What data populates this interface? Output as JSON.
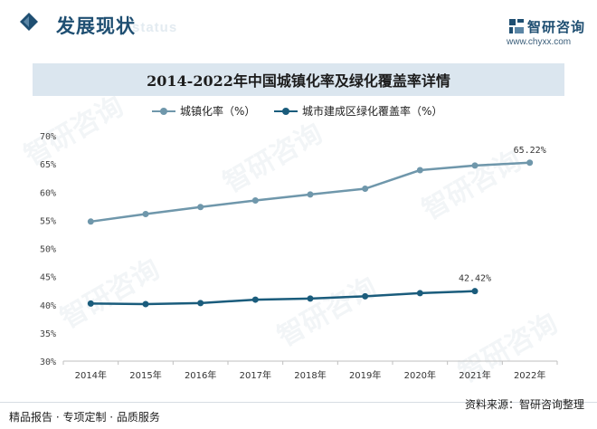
{
  "header": {
    "section_title": "发展现状",
    "section_subtitle": "status",
    "brand_name": "智研咨询",
    "brand_url": "www.chyxx.com"
  },
  "footer": {
    "left_text": "精品报告 · 专项定制 · 品质服务",
    "source_text": "资料来源：智研咨询整理"
  },
  "watermark_text": "智研咨询",
  "colors": {
    "series1": "#6f97ab",
    "series2": "#1a5c7c",
    "title_bg": "#dbe6ef",
    "brand": "#1f4f72"
  },
  "chart_data": {
    "type": "line",
    "title": "2014-2022年中国城镇化率及绿化覆盖率详情",
    "categories": [
      "2014年",
      "2015年",
      "2016年",
      "2017年",
      "2018年",
      "2019年",
      "2020年",
      "2021年",
      "2022年"
    ],
    "ylim": [
      30,
      70
    ],
    "yticks": [
      30,
      35,
      40,
      45,
      50,
      55,
      60,
      65,
      70
    ],
    "ytick_labels": [
      "30%",
      "35%",
      "40%",
      "45%",
      "50%",
      "55%",
      "60%",
      "65%",
      "70%"
    ],
    "grid": false,
    "legend_position": "top",
    "series": [
      {
        "name": "城镇化率（%）",
        "values": [
          54.77,
          56.1,
          57.35,
          58.52,
          59.58,
          60.6,
          63.89,
          64.72,
          65.22
        ],
        "end_label": "65.22%"
      },
      {
        "name": "城市建成区绿化覆盖率（%）",
        "values": [
          40.22,
          40.12,
          40.3,
          40.91,
          41.11,
          41.51,
          42.06,
          42.42,
          null
        ],
        "end_label": "42.42%"
      }
    ]
  }
}
